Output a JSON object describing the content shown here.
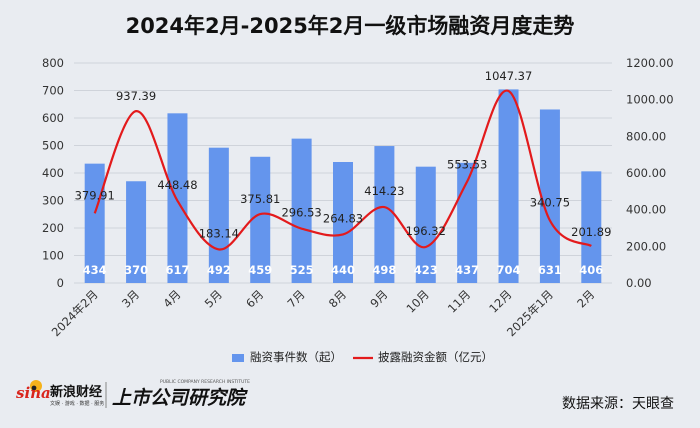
{
  "title": "2024年2月-2025年2月一级市场融资月度走势",
  "source_text": "数据来源：天眼查",
  "logos": {
    "sina_mark": "sina",
    "sina_name": "新浪财经",
    "sina_sub": "文娱 · 游戏 · 数据 · 服务",
    "institute_name": "上市公司研究院",
    "institute_sub": "PUBLIC COMPANY RESEARCH INSTITUTE"
  },
  "colors": {
    "bar": "#6495ED",
    "line": "#E31A1C",
    "grid": "#cfd3da",
    "background": "#e9ecf1"
  },
  "chart_data": {
    "type": "bar",
    "title": "2024年2月-2025年2月一级市场融资月度走势",
    "categories": [
      "2024年2月",
      "3月",
      "4月",
      "5月",
      "6月",
      "7月",
      "8月",
      "9月",
      "10月",
      "11月",
      "12月",
      "2025年1月",
      "2月"
    ],
    "series": [
      {
        "name": "融资事件数（起）",
        "type": "bar",
        "axis": "left",
        "values": [
          434,
          370,
          617,
          492,
          459,
          525,
          440,
          498,
          423,
          437,
          704,
          631,
          406
        ],
        "labels": [
          "434",
          "370",
          "617",
          "492",
          "459",
          "525",
          "440",
          "498",
          "423",
          "437",
          "704",
          "631",
          "406"
        ]
      },
      {
        "name": "披露融资金额（亿元）",
        "type": "line",
        "axis": "right",
        "values": [
          379.91,
          937.39,
          448.48,
          183.14,
          375.81,
          296.53,
          264.83,
          414.23,
          196.32,
          553.53,
          1047.37,
          340.75,
          201.89
        ],
        "labels": [
          "379.91",
          "937.39",
          "448.48",
          "183.14",
          "375.81",
          "296.53",
          "264.83",
          "414.23",
          "196.32",
          "553.53",
          "1047.37",
          "340.75",
          "201.89"
        ]
      }
    ],
    "left_axis": {
      "ylim": [
        0,
        800
      ],
      "ticks": [
        "0",
        "100",
        "200",
        "300",
        "400",
        "500",
        "600",
        "700",
        "800"
      ]
    },
    "right_axis": {
      "ylim": [
        0,
        1200
      ],
      "ticks": [
        "0.00",
        "200.00",
        "400.00",
        "600.00",
        "800.00",
        "1000.00",
        "1200.00"
      ]
    },
    "grid": true,
    "legend_position": "bottom"
  }
}
